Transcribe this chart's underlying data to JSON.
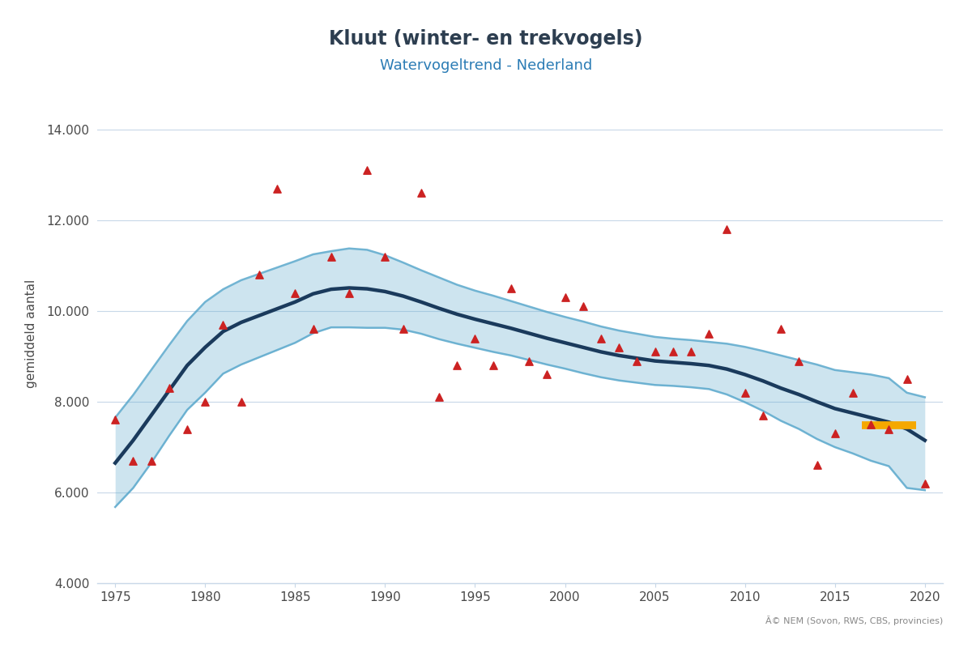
{
  "title": "Kluut (winter- en trekvogels)",
  "subtitle": "Watervogeltrend - Nederland",
  "xlabel": "",
  "ylabel": "gemiddeld aantal",
  "credit": "Ã© NEM (Sovon, RWS, CBS, provincies)",
  "title_color": "#2d3e50",
  "subtitle_color": "#2b7cb5",
  "ylabel_color": "#4a4a4a",
  "bg_color": "#ffffff",
  "grid_color": "#c8d8e8",
  "xlim": [
    1974,
    2021
  ],
  "ylim": [
    4000,
    15000
  ],
  "yticks": [
    4000,
    6000,
    8000,
    10000,
    12000,
    14000
  ],
  "xticks": [
    1975,
    1980,
    1985,
    1990,
    1995,
    2000,
    2005,
    2010,
    2015,
    2020
  ],
  "scatter_x": [
    1975,
    1976,
    1977,
    1978,
    1979,
    1980,
    1981,
    1982,
    1983,
    1984,
    1985,
    1986,
    1987,
    1988,
    1989,
    1990,
    1991,
    1992,
    1993,
    1994,
    1995,
    1996,
    1997,
    1998,
    1999,
    2000,
    2001,
    2002,
    2003,
    2004,
    2005,
    2006,
    2007,
    2008,
    2009,
    2010,
    2011,
    2012,
    2013,
    2014,
    2015,
    2016,
    2017,
    2018,
    2019,
    2020
  ],
  "scatter_y": [
    7600,
    6700,
    6700,
    8300,
    7400,
    8000,
    9700,
    8000,
    10800,
    12700,
    10400,
    9600,
    11200,
    10400,
    13100,
    11200,
    9600,
    12600,
    8100,
    8800,
    9400,
    8800,
    10500,
    8900,
    8600,
    10300,
    10100,
    9400,
    9200,
    8900,
    9100,
    9100,
    9100,
    9500,
    11800,
    8200,
    7700,
    9600,
    8900,
    6600,
    7300,
    8200,
    7500,
    7400,
    8500,
    6200
  ],
  "trend_x": [
    1975,
    1976,
    1977,
    1978,
    1979,
    1980,
    1981,
    1982,
    1983,
    1984,
    1985,
    1986,
    1987,
    1988,
    1989,
    1990,
    1991,
    1992,
    1993,
    1994,
    1995,
    1996,
    1997,
    1998,
    1999,
    2000,
    2001,
    2002,
    2003,
    2004,
    2005,
    2006,
    2007,
    2008,
    2009,
    2010,
    2011,
    2012,
    2013,
    2014,
    2015,
    2016,
    2017,
    2018,
    2019,
    2020
  ],
  "trend_y": [
    6650,
    7150,
    7700,
    8250,
    8800,
    9200,
    9550,
    9750,
    9900,
    10050,
    10200,
    10380,
    10480,
    10510,
    10490,
    10430,
    10330,
    10200,
    10060,
    9930,
    9820,
    9720,
    9620,
    9510,
    9400,
    9300,
    9200,
    9100,
    9020,
    8960,
    8900,
    8870,
    8840,
    8800,
    8720,
    8600,
    8460,
    8300,
    8160,
    8000,
    7850,
    7750,
    7650,
    7550,
    7400,
    7150
  ],
  "upper_ci_y": [
    7650,
    8150,
    8700,
    9250,
    9780,
    10200,
    10480,
    10680,
    10820,
    10960,
    11100,
    11250,
    11320,
    11380,
    11350,
    11230,
    11070,
    10900,
    10740,
    10580,
    10450,
    10340,
    10220,
    10100,
    9980,
    9870,
    9770,
    9660,
    9570,
    9500,
    9430,
    9390,
    9360,
    9320,
    9280,
    9210,
    9120,
    9020,
    8920,
    8820,
    8700,
    8650,
    8600,
    8520,
    8200,
    8100
  ],
  "lower_ci_y": [
    5680,
    6100,
    6650,
    7250,
    7820,
    8200,
    8620,
    8820,
    8980,
    9140,
    9300,
    9510,
    9640,
    9640,
    9630,
    9630,
    9590,
    9500,
    9380,
    9280,
    9190,
    9100,
    9020,
    8920,
    8820,
    8730,
    8630,
    8540,
    8470,
    8420,
    8370,
    8350,
    8320,
    8280,
    8160,
    7990,
    7800,
    7580,
    7400,
    7180,
    7000,
    6860,
    6700,
    6580,
    6100,
    6050
  ],
  "orange_line_x": [
    2016.5,
    2019.5
  ],
  "orange_line_y": [
    7480,
    7480
  ],
  "trend_color": "#1a3a5c",
  "ci_color": "#5aa8cc",
  "ci_alpha": 0.3,
  "scatter_color": "#cc2222",
  "orange_color": "#f5a800"
}
